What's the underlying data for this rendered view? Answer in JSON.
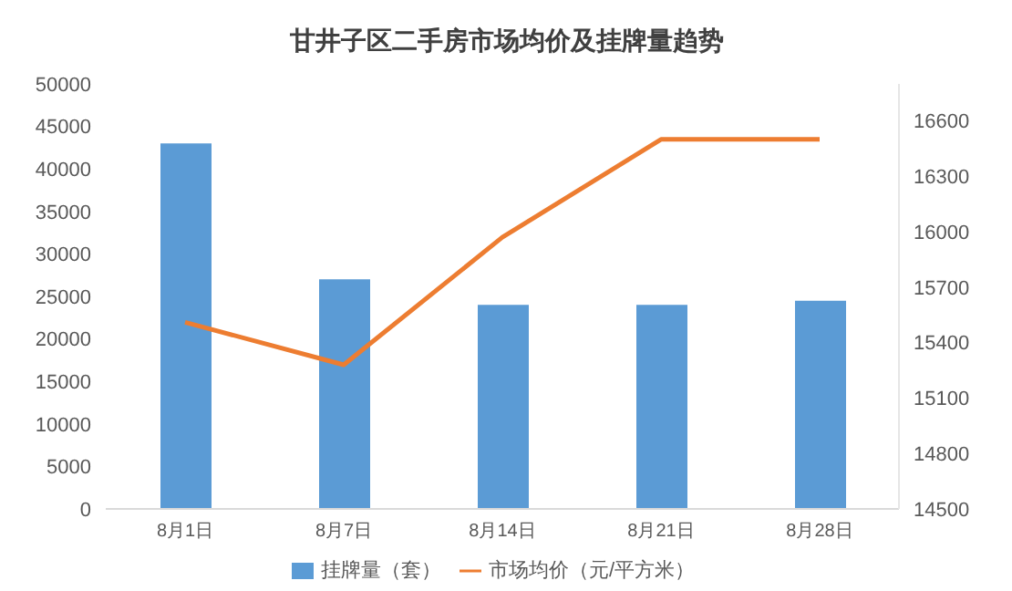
{
  "chart_data": {
    "type": "bar",
    "title": "甘井子区二手房市场均价及挂牌量趋势",
    "categories": [
      "8月1日",
      "8月7日",
      "8月14日",
      "8月21日",
      "8月28日"
    ],
    "series": [
      {
        "name": "挂牌量（套）",
        "color": "#5b9bd5",
        "values": [
          43000,
          27000,
          24000,
          24000,
          24500
        ]
      },
      {
        "name": "市场均价（元/平方米）",
        "type": "line",
        "axis": "y2",
        "color": "#ed7d31",
        "values": [
          15510,
          15280,
          15970,
          16500,
          16500
        ]
      }
    ],
    "ylim": [
      0,
      50000
    ],
    "yticks": [
      0,
      5000,
      10000,
      15000,
      20000,
      25000,
      30000,
      35000,
      40000,
      45000,
      50000
    ],
    "y2lim": [
      14500,
      16800
    ],
    "y2ticks": [
      14500,
      14800,
      15100,
      15400,
      15700,
      16000,
      16300,
      16600
    ],
    "grid": false,
    "legend": "bottom",
    "marker": "none"
  }
}
